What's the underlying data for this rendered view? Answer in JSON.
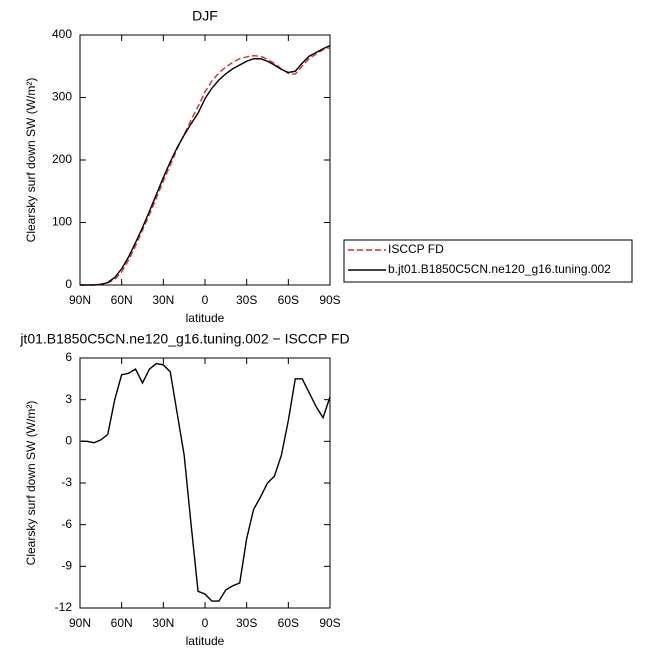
{
  "chart_data": [
    {
      "type": "line",
      "title": "DJF",
      "xlabel": "latitude",
      "ylabel": "Clearsky surf down SW (W/m²)",
      "x": [
        90,
        85,
        80,
        75,
        70,
        65,
        60,
        55,
        50,
        45,
        40,
        35,
        30,
        25,
        20,
        15,
        10,
        5,
        0,
        -5,
        -10,
        -15,
        -20,
        -25,
        -30,
        -35,
        -40,
        -45,
        -50,
        -55,
        -60,
        -65,
        -70,
        -75,
        -80,
        -85,
        -90
      ],
      "xlim": [
        90,
        -90
      ],
      "xticks": [
        {
          "value": 90,
          "label": "90N"
        },
        {
          "value": 60,
          "label": "60N"
        },
        {
          "value": 30,
          "label": "30N"
        },
        0,
        {
          "value": -30,
          "label": "30S"
        },
        {
          "value": -60,
          "label": "60S"
        },
        {
          "value": -90,
          "label": "90S"
        }
      ],
      "ylim": [
        0,
        400
      ],
      "yticks": [
        0,
        100,
        200,
        300,
        400
      ],
      "legend": "right",
      "series": [
        {
          "name": "ISCCP FD",
          "color": "#e8262c",
          "dash": true,
          "values": [
            0,
            0,
            0.1,
            0.9,
            3.5,
            9,
            21.2,
            40.1,
            62.8,
            87.8,
            112.8,
            139.4,
            166.5,
            192,
            218,
            241,
            264,
            285.8,
            309,
            326.5,
            339.5,
            348.7,
            356.4,
            362.2,
            365,
            366.9,
            366,
            361,
            354.5,
            346,
            338.5,
            337.5,
            350.5,
            362.5,
            369.5,
            376.3,
            379.8
          ]
        },
        {
          "name": "b.jt01.B1850C5CN.ne120_g16.tuning.002",
          "color": "#000000",
          "dash": false,
          "values": [
            0,
            0,
            0,
            1,
            4,
            12,
            26,
            45,
            68,
            92,
            118,
            145,
            172,
            197,
            220,
            240,
            258,
            275,
            298,
            315,
            328,
            338,
            346,
            352,
            358,
            362,
            362,
            358,
            352,
            345,
            340,
            342,
            355,
            366,
            372,
            378,
            383
          ]
        }
      ]
    },
    {
      "type": "line",
      "title": "jt01.B1850C5CN.ne120_g16.tuning.002 − ISCCP FD",
      "xlabel": "latitude",
      "ylabel": "Clearsky surf down SW (W/m²)",
      "x": [
        90,
        85,
        80,
        75,
        70,
        65,
        60,
        55,
        50,
        45,
        40,
        35,
        30,
        25,
        20,
        15,
        10,
        5,
        0,
        -5,
        -10,
        -15,
        -20,
        -25,
        -30,
        -35,
        -40,
        -45,
        -50,
        -55,
        -60,
        -65,
        -70,
        -75,
        -80,
        -85,
        -90
      ],
      "xlim": [
        90,
        -90
      ],
      "xticks": [
        {
          "value": 90,
          "label": "90N"
        },
        {
          "value": 60,
          "label": "60N"
        },
        {
          "value": 30,
          "label": "30N"
        },
        0,
        {
          "value": -30,
          "label": "30S"
        },
        {
          "value": -60,
          "label": "60S"
        },
        {
          "value": -90,
          "label": "90S"
        }
      ],
      "ylim": [
        -12,
        6
      ],
      "yticks": [
        -12,
        -9,
        -6,
        -3,
        0,
        3,
        6
      ],
      "series": [
        {
          "color": "#000000",
          "dash": false,
          "values": [
            0,
            0,
            -0.1,
            0.1,
            0.5,
            3,
            4.8,
            4.9,
            5.2,
            4.2,
            5.2,
            5.6,
            5.5,
            5,
            2,
            -1,
            -6,
            -10.8,
            -11,
            -11.5,
            -11.5,
            -10.7,
            -10.4,
            -10.2,
            -7,
            -4.9,
            -4,
            -3,
            -2.5,
            -1,
            1.5,
            4.5,
            4.5,
            3.5,
            2.5,
            1.7,
            3.2
          ]
        }
      ]
    }
  ]
}
